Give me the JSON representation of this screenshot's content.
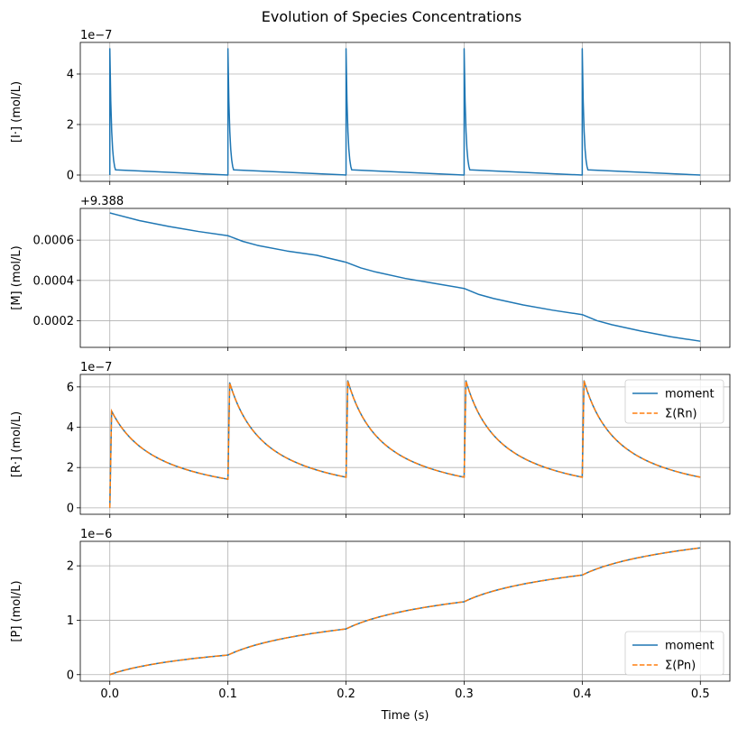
{
  "figure": {
    "title": "Evolution of Species Concentrations"
  },
  "colors": {
    "blue": "#1f77b4",
    "orange": "#ff7f0e"
  },
  "chart_data": [
    {
      "type": "line",
      "ylabel": "[I·] (mol/L)",
      "offset_label": "1e−7",
      "xlim": [
        -0.025,
        0.525
      ],
      "ylim": [
        -0.25,
        5.25
      ],
      "x_ticks": [
        0.0,
        0.1,
        0.2,
        0.3,
        0.4,
        0.5
      ],
      "y_ticks": [
        {
          "v": 0,
          "label": "0"
        },
        {
          "v": 2,
          "label": "2"
        },
        {
          "v": 4,
          "label": "4"
        }
      ],
      "show_x_tick_labels": false,
      "series": [
        {
          "name": "I",
          "style": "solid",
          "spikes": {
            "times": [
              0.0,
              0.1,
              0.2,
              0.3,
              0.4
            ],
            "peak": 5.0,
            "baseline": 0.0,
            "decay_time": 0.0015
          }
        }
      ]
    },
    {
      "type": "line",
      "ylabel": "[M] (mol/L)",
      "offset_label": "+9.388",
      "xlim": [
        -0.025,
        0.525
      ],
      "ylim": [
        6.75e-05,
        0.0007575
      ],
      "x_ticks": [
        0.0,
        0.1,
        0.2,
        0.3,
        0.4,
        0.5
      ],
      "y_ticks": [
        {
          "v": 0.0002,
          "label": "0.0002"
        },
        {
          "v": 0.0004,
          "label": "0.0004"
        },
        {
          "v": 0.0006,
          "label": "0.0006"
        }
      ],
      "show_x_tick_labels": false,
      "series": [
        {
          "name": "M",
          "style": "solid",
          "points": [
            [
              0.0,
              0.000735
            ],
            [
              0.025,
              0.000697
            ],
            [
              0.05,
              0.000668
            ],
            [
              0.075,
              0.000643
            ],
            [
              0.1,
              0.000622
            ],
            [
              0.1125,
              0.000594
            ],
            [
              0.125,
              0.000574
            ],
            [
              0.15,
              0.000546
            ],
            [
              0.175,
              0.000525
            ],
            [
              0.2,
              0.00049
            ],
            [
              0.2125,
              0.000462
            ],
            [
              0.225,
              0.000442
            ],
            [
              0.25,
              0.00041
            ],
            [
              0.275,
              0.000385
            ],
            [
              0.3,
              0.00036
            ],
            [
              0.3125,
              0.00033
            ],
            [
              0.325,
              0.00031
            ],
            [
              0.35,
              0.000278
            ],
            [
              0.375,
              0.000252
            ],
            [
              0.4,
              0.00023
            ],
            [
              0.4125,
              0.0002
            ],
            [
              0.425,
              0.00018
            ],
            [
              0.45,
              0.000148
            ],
            [
              0.475,
              0.00012
            ],
            [
              0.5,
              9.8e-05
            ]
          ]
        }
      ]
    },
    {
      "type": "line",
      "ylabel": "[R·] (mol/L)",
      "offset_label": "1e−7",
      "xlim": [
        -0.025,
        0.525
      ],
      "ylim": [
        -0.32,
        6.62
      ],
      "x_ticks": [
        0.0,
        0.1,
        0.2,
        0.3,
        0.4,
        0.5
      ],
      "y_ticks": [
        {
          "v": 0,
          "label": "0"
        },
        {
          "v": 2,
          "label": "2"
        },
        {
          "v": 4,
          "label": "4"
        },
        {
          "v": 6,
          "label": "6"
        }
      ],
      "show_x_tick_labels": false,
      "legend": {
        "position": "upper right",
        "entries": [
          "moment",
          "Σ(Rn)"
        ]
      },
      "series": [
        {
          "name": "moment",
          "style": "solid",
          "segments": [
            {
              "start": 0.0,
              "from": 0.0,
              "peak": 4.8,
              "end": 1.42
            },
            {
              "start": 0.1,
              "from": 1.42,
              "peak": 6.2,
              "end": 1.52
            },
            {
              "start": 0.2,
              "from": 1.52,
              "peak": 6.3,
              "end": 1.52
            },
            {
              "start": 0.3,
              "from": 1.52,
              "peak": 6.3,
              "end": 1.52
            },
            {
              "start": 0.4,
              "from": 1.52,
              "peak": 6.3,
              "end": 1.52
            }
          ]
        },
        {
          "name": "Σ(Rn)",
          "style": "dashed",
          "same_as": "moment"
        }
      ]
    },
    {
      "type": "line",
      "ylabel": "[P] (mol/L)",
      "offset_label": "1e−6",
      "xlabel": "Time (s)",
      "xlim": [
        -0.025,
        0.525
      ],
      "ylim": [
        -0.12,
        2.45
      ],
      "x_ticks": [
        0.0,
        0.1,
        0.2,
        0.3,
        0.4,
        0.5
      ],
      "x_tick_labels": [
        "0.0",
        "0.1",
        "0.2",
        "0.3",
        "0.4",
        "0.5"
      ],
      "y_ticks": [
        {
          "v": 0,
          "label": "0"
        },
        {
          "v": 1,
          "label": "1"
        },
        {
          "v": 2,
          "label": "2"
        }
      ],
      "show_x_tick_labels": true,
      "legend": {
        "position": "lower right",
        "entries": [
          "moment",
          "Σ(Pn)"
        ]
      },
      "series": [
        {
          "name": "moment",
          "style": "solid",
          "segments": [
            {
              "start": 0.0,
              "from": 0.0,
              "end": 0.36
            },
            {
              "start": 0.1,
              "from": 0.36,
              "end": 0.84
            },
            {
              "start": 0.2,
              "from": 0.84,
              "end": 1.34
            },
            {
              "start": 0.3,
              "from": 1.34,
              "end": 1.83
            },
            {
              "start": 0.4,
              "from": 1.83,
              "end": 2.33
            }
          ]
        },
        {
          "name": "Σ(Pn)",
          "style": "dashed",
          "same_as": "moment"
        }
      ]
    }
  ]
}
